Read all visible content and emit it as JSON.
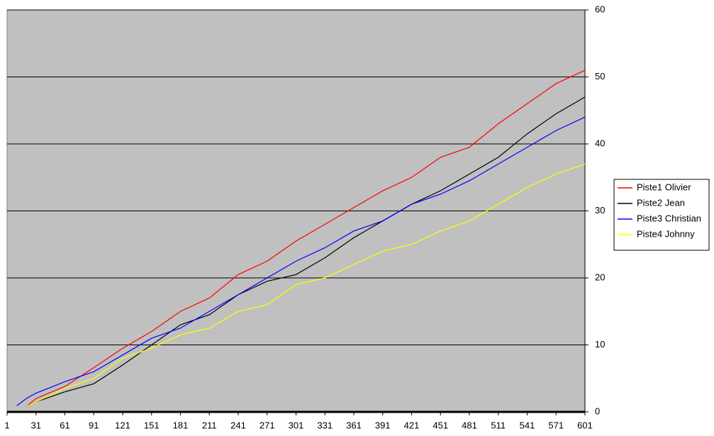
{
  "chart_data": {
    "type": "line",
    "x": [
      11,
      21,
      31,
      61,
      91,
      121,
      151,
      181,
      211,
      241,
      271,
      301,
      331,
      361,
      391,
      421,
      451,
      481,
      511,
      541,
      571,
      601
    ],
    "series": [
      {
        "name": "Piste1 Olivier",
        "color": "#ff0000",
        "values": [
          null,
          0.8,
          2,
          3.8,
          6.6,
          9.5,
          12,
          15,
          17,
          20.5,
          22.5,
          25.5,
          28,
          30.5,
          33,
          35,
          38,
          39.5,
          43,
          46,
          49,
          51
        ]
      },
      {
        "name": "Piste2 Jean",
        "color": "#000000",
        "values": [
          null,
          0.8,
          1.5,
          3,
          4.2,
          7,
          10,
          13,
          14.5,
          17.5,
          19.5,
          20.5,
          23,
          26,
          28.5,
          31,
          33,
          35.5,
          38,
          41.5,
          44.5,
          47
        ]
      },
      {
        "name": "Piste3 Christian",
        "color": "#0000ff",
        "values": [
          0.9,
          2,
          2.8,
          4.5,
          6,
          8.5,
          11,
          12.5,
          15,
          17.5,
          20,
          22.5,
          24.5,
          27,
          28.5,
          31,
          32.5,
          34.5,
          37,
          39.5,
          42,
          44
        ]
      },
      {
        "name": "Piste4 Johnny",
        "color": "#ffff00",
        "values": [
          null,
          0.8,
          1.5,
          3.5,
          5,
          8,
          9.5,
          11.5,
          12.5,
          15,
          16,
          19,
          20,
          22,
          24,
          25,
          27,
          28.5,
          31,
          33.5,
          35.5,
          37
        ]
      }
    ],
    "xlim": [
      1,
      601
    ],
    "xticks": [
      1,
      31,
      61,
      91,
      121,
      151,
      181,
      211,
      241,
      271,
      301,
      331,
      361,
      391,
      421,
      451,
      481,
      511,
      541,
      571,
      601
    ],
    "ylim": [
      0,
      60
    ],
    "yticks": [
      0,
      10,
      20,
      30,
      40,
      50,
      60
    ],
    "grid": true,
    "plot_background": "#c0c0c0",
    "legend": "right"
  }
}
